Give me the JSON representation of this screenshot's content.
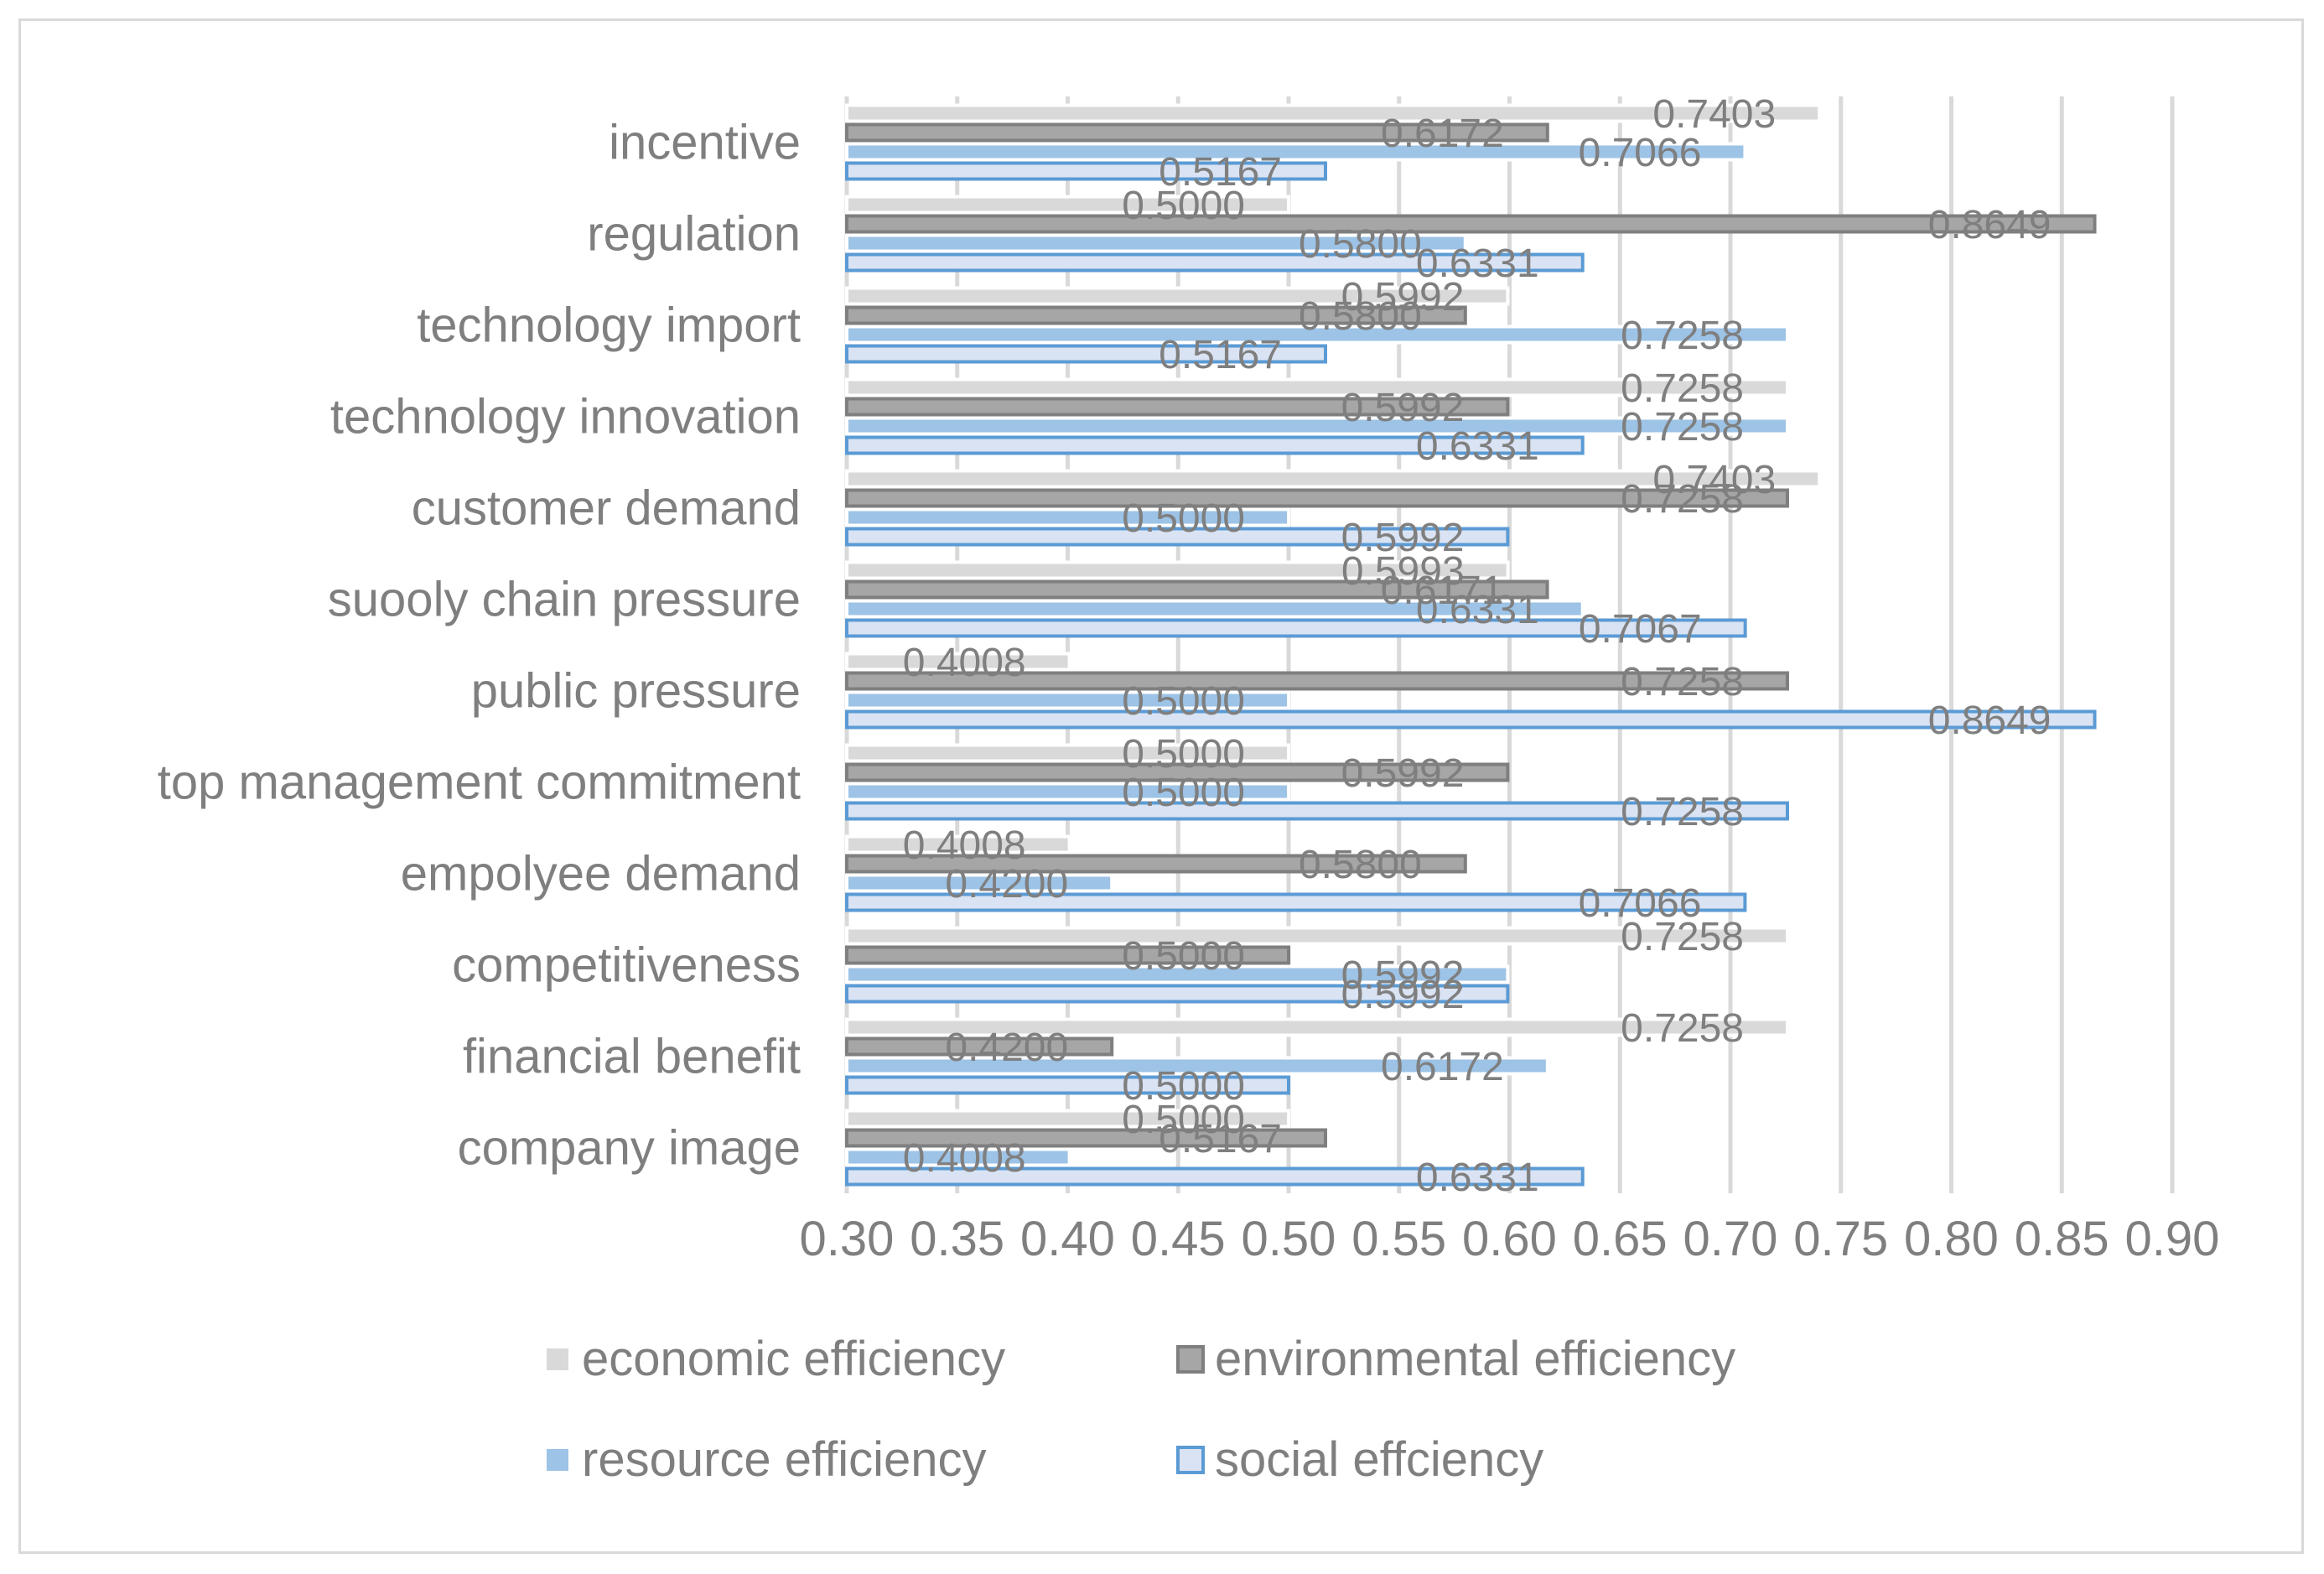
{
  "chart_data": {
    "type": "bar",
    "orientation": "horizontal",
    "categories": [
      "incentive",
      "regulation",
      "technology import",
      "technology innovation",
      "customer demand",
      "suooly chain pressure",
      "public pressure",
      "top management commitment",
      "empolyee demand",
      "competitiveness",
      "financial benefit",
      "company image"
    ],
    "series": [
      {
        "name": "economic efficiency",
        "color": "#d9d9d9",
        "outline": "#ffffff",
        "values": [
          0.7403,
          0.5,
          0.5992,
          0.7258,
          0.7403,
          0.5993,
          0.4008,
          0.5,
          0.4008,
          0.7258,
          0.7258,
          0.5
        ],
        "labels": [
          "0.7403",
          "0.5000",
          "0.5992",
          "0.7258",
          "0.7403",
          "0.5993",
          "0.4008",
          "0.5000",
          "0.4008",
          "0.7258",
          "0.7258",
          "0.5000"
        ]
      },
      {
        "name": "environmental efficiency",
        "color": "#a6a6a6",
        "outline": "#7f7f7f",
        "values": [
          0.6172,
          0.8649,
          0.58,
          0.5992,
          0.7258,
          0.6171,
          0.7258,
          0.5992,
          0.58,
          0.5,
          0.42,
          0.5167
        ],
        "labels": [
          "0.6172",
          "0.8649",
          "0.5800",
          "0.5992",
          "0.7258",
          "0.6171",
          "0.7258",
          "0.5992",
          "0.5800",
          "0.5000",
          "0.4200",
          "0.5167"
        ]
      },
      {
        "name": "resource efficiency",
        "color": "#9dc3e6",
        "outline": "#ffffff",
        "values": [
          0.7066,
          0.58,
          0.7258,
          0.7258,
          0.5,
          0.6331,
          0.5,
          0.5,
          0.42,
          0.5992,
          0.6172,
          0.4008
        ],
        "labels": [
          "0.7066",
          "0.5800",
          "0.7258",
          "0.7258",
          "0.5000",
          "0.6331",
          "0.5000",
          "0.5000",
          "0.4200",
          "0.5992",
          "0.6172",
          "0.4008"
        ]
      },
      {
        "name": "social effciency",
        "color": "#dae3f3",
        "outline": "#5b9bd5",
        "values": [
          0.5167,
          0.6331,
          0.5167,
          0.6331,
          0.5992,
          0.7067,
          0.8649,
          0.7258,
          0.7066,
          0.5992,
          0.5,
          0.6331
        ],
        "labels": [
          "0.5167",
          "0.6331",
          "0.5167",
          "0.6331",
          "0.5992",
          "0.7067",
          "0.8649",
          "0.7258",
          "0.7066",
          "0.5992",
          "0.5000",
          "0.6331"
        ]
      }
    ],
    "title": "",
    "xlabel": "",
    "ylabel": "",
    "xlim": [
      0.3,
      0.9
    ],
    "ticks": [
      "0.30",
      "0.35",
      "0.40",
      "0.45",
      "0.50",
      "0.55",
      "0.60",
      "0.65",
      "0.70",
      "0.75",
      "0.80",
      "0.85",
      "0.90"
    ],
    "tick_values": [
      0.3,
      0.35,
      0.4,
      0.45,
      0.5,
      0.55,
      0.6,
      0.65,
      0.7,
      0.75,
      0.8,
      0.85,
      0.9
    ],
    "grid": true,
    "gridline_color": "#d9d9d9",
    "text_color": "#7f7f7f",
    "legend_position": "bottom"
  }
}
